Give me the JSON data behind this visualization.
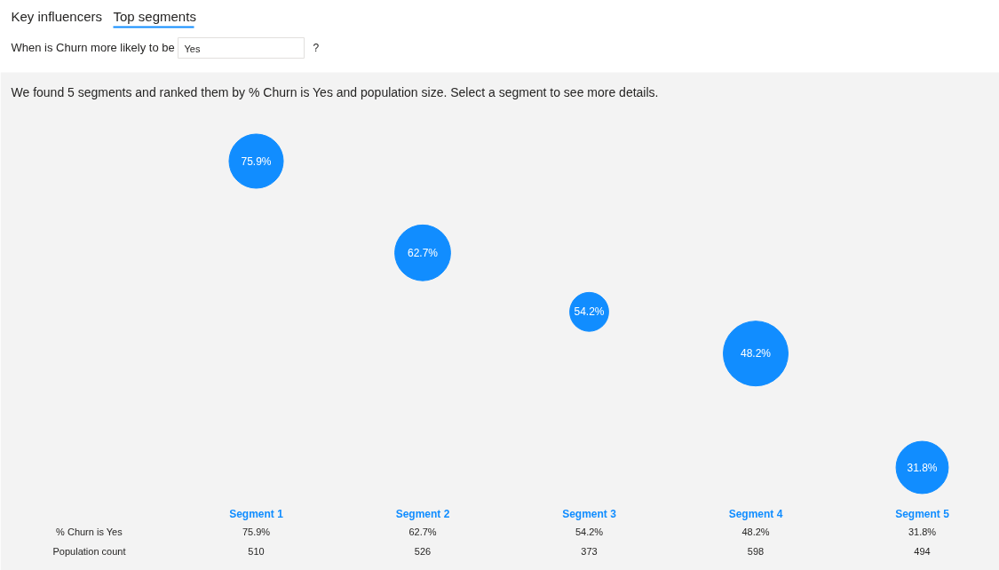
{
  "chart_data": {
    "type": "bubble",
    "title": "We found 5 segments and ranked them by % Churn is Yes and population size. Select a segment to see more details.",
    "categories": [
      "Segment 1",
      "Segment 2",
      "Segment 3",
      "Segment 4",
      "Segment 5"
    ],
    "values": [
      75.9,
      62.7,
      54.2,
      48.2,
      31.8
    ],
    "value_labels": [
      "75.9%",
      "62.7%",
      "54.2%",
      "48.2%",
      "31.8%"
    ],
    "sizes": [
      0.7,
      0.74,
      0.36,
      1,
      0.65
    ],
    "color": "#118dff",
    "tick_labels": false,
    "annotations": [
      "Key influencers",
      "Top segments",
      "When is Churn more likely to be",
      "Yes",
      "?",
      "% Churn is Yes",
      "Population count",
      "510",
      "526",
      "373",
      "598",
      "494"
    ]
  }
}
